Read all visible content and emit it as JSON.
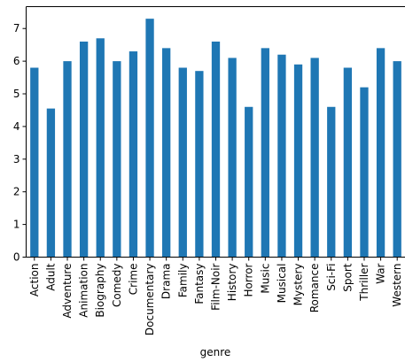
{
  "chart_data": {
    "type": "bar",
    "categories": [
      "Action",
      "Adult",
      "Adventure",
      "Animation",
      "Biography",
      "Comedy",
      "Crime",
      "Documentary",
      "Drama",
      "Family",
      "Fantasy",
      "Film-Noir",
      "History",
      "Horror",
      "Music",
      "Musical",
      "Mystery",
      "Romance",
      "Sci-Fi",
      "Sport",
      "Thriller",
      "War",
      "Western"
    ],
    "values": [
      5.8,
      4.55,
      6.0,
      6.6,
      6.7,
      6.0,
      6.3,
      7.3,
      6.4,
      5.8,
      5.7,
      6.6,
      6.1,
      4.6,
      6.4,
      6.2,
      5.9,
      6.1,
      4.6,
      5.8,
      5.2,
      6.4,
      6.0
    ],
    "title": "",
    "xlabel": "genre",
    "ylabel": "",
    "ylim": [
      0,
      7.67
    ],
    "yticks": [
      0,
      1,
      2,
      3,
      4,
      5,
      6,
      7
    ],
    "grid": false,
    "bar_color": "#1f77b4"
  }
}
